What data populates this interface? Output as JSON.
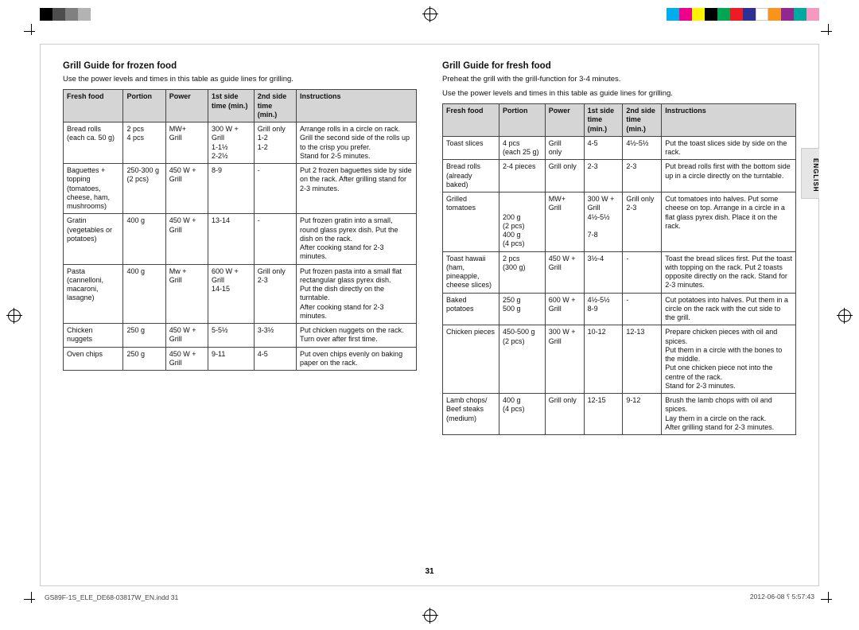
{
  "colorbar_left": [
    "#000000",
    "#4d4d4d",
    "#808080",
    "#b3b3b3"
  ],
  "colorbar_right": [
    "#00aeef",
    "#ec008c",
    "#fff200",
    "#000000",
    "#00a651",
    "#ed1c24",
    "#2e3192",
    "#ffffff",
    "#f7941d",
    "#92278f",
    "#00a99d",
    "#f49ac1"
  ],
  "page_number": "31",
  "side_tab": "ENGLISH",
  "footer_left": "GS89F-1S_ELE_DE68-03817W_EN.indd   31",
  "footer_right": "2012-06-08   ⸮ 5:57:43",
  "frozen": {
    "title": "Grill Guide for frozen food",
    "intro": "Use the power levels and times in this table as guide lines for grilling.",
    "headers": [
      "Fresh food",
      "Portion",
      "Power",
      "1st side time (min.)",
      "2nd side time (min.)",
      "Instructions"
    ],
    "col_widths": [
      "17%",
      "12%",
      "12%",
      "13%",
      "12%",
      "34%"
    ],
    "rows": [
      {
        "food": "Bread rolls (each ca. 50 g)",
        "portion": "2 pcs\n4 pcs",
        "power": "MW+\nGrill",
        "side1": "300 W +\nGrill\n1-1½\n2-2½",
        "side2": "Grill only\n1-2\n1-2",
        "instr": "Arrange rolls in a circle on rack.\nGrill the second side of the rolls up to the crisp you prefer.\nStand for 2-5 minutes."
      },
      {
        "food": "Baguettes + topping (tomatoes, cheese, ham, mushrooms)",
        "portion": "250-300 g\n(2 pcs)",
        "power": "450 W +\nGrill",
        "side1": "8-9",
        "side2": "-",
        "instr": "Put 2 frozen baguettes side by side on the rack. After grilling stand for 2-3 minutes."
      },
      {
        "food": "Gratin (vegetables or potatoes)",
        "portion": "400 g",
        "power": "450 W +\nGrill",
        "side1": "13-14",
        "side2": "-",
        "instr": "Put frozen gratin into a small, round glass pyrex dish. Put the dish on the rack.\nAfter cooking stand for 2-3 minutes."
      },
      {
        "food": "Pasta (cannelloni, macaroni, lasagne)",
        "portion": "400 g",
        "power": "Mw +\nGrill",
        "side1": "600 W +\nGrill\n14-15",
        "side2": "Grill only\n2-3",
        "instr": "Put frozen pasta into a small flat rectangular glass pyrex dish.\nPut the dish directly on the turntable.\nAfter cooking stand for 2-3 minutes."
      },
      {
        "food": "Chicken nuggets",
        "portion": "250 g",
        "power": "450 W +\nGrill",
        "side1": "5-5½",
        "side2": "3-3½",
        "instr": "Put chicken nuggets on the rack.\nTurn over after first time."
      },
      {
        "food": "Oven chips",
        "portion": "250 g",
        "power": "450 W +\nGrill",
        "side1": "9-11",
        "side2": "4-5",
        "instr": "Put oven chips evenly on baking paper on the rack."
      }
    ]
  },
  "fresh": {
    "title": "Grill Guide for fresh food",
    "intro1": "Preheat the grill with the grill-function for 3-4 minutes.",
    "intro2": "Use the power levels and times in this table as guide lines for grilling.",
    "headers": [
      "Fresh food",
      "Portion",
      "Power",
      "1st side time (min.)",
      "2nd side time (min.)",
      "Instructions"
    ],
    "col_widths": [
      "16%",
      "13%",
      "11%",
      "11%",
      "11%",
      "38%"
    ],
    "rows": [
      {
        "food": "Toast slices",
        "portion": "4 pcs\n(each 25 g)",
        "power": "Grill\nonly",
        "side1": "4-5",
        "side2": "4½-5½",
        "instr": "Put the toast slices side by side on the rack."
      },
      {
        "food": "Bread rolls (already baked)",
        "portion": "2-4 pieces",
        "power": "Grill only",
        "side1": "2-3",
        "side2": "2-3",
        "instr": "Put bread rolls first with the bottom side up in a circle directly on the turntable."
      },
      {
        "food": "Grilled tomatoes",
        "portion": "\n\n200 g\n(2 pcs)\n400 g\n(4 pcs)",
        "power": "MW+\nGrill",
        "side1": "300 W +\nGrill\n4½-5½\n\n7-8",
        "side2": "Grill only\n2-3",
        "instr": "Cut tomatoes into halves. Put some cheese on top. Arrange in a circle in a flat glass pyrex dish. Place it on the rack."
      },
      {
        "food": "Toast hawaii (ham, pineapple, cheese slices)",
        "portion": "2 pcs\n(300 g)",
        "power": "450 W +\nGrill",
        "side1": "3½-4",
        "side2": "-",
        "instr": "Toast the bread slices first. Put the toast with topping on the rack. Put 2 toasts opposite directly on the rack. Stand for 2-3 minutes."
      },
      {
        "food": "Baked potatoes",
        "portion": "250 g\n500 g",
        "power": "600 W +\nGrill",
        "side1": "4½-5½\n8-9",
        "side2": "-",
        "instr": "Cut potatoes into halves. Put them in a circle on the rack with the cut side to the grill."
      },
      {
        "food": "Chicken pieces",
        "portion": "450-500 g\n(2 pcs)",
        "power": "300 W +\nGrill",
        "side1": "10-12",
        "side2": "12-13",
        "instr": "Prepare chicken pieces with oil and spices.\nPut them in a circle with the bones to the middle.\nPut one chicken piece not into the centre of the rack.\nStand for 2-3 minutes."
      },
      {
        "food": "Lamb chops/ Beef steaks (medium)",
        "portion": "400 g\n(4 pcs)",
        "power": "Grill only",
        "side1": "12-15",
        "side2": "9-12",
        "instr": "Brush the lamb chops with oil and spices.\nLay them in a circle on the rack.\nAfter grilling stand for 2-3 minutes."
      }
    ]
  }
}
